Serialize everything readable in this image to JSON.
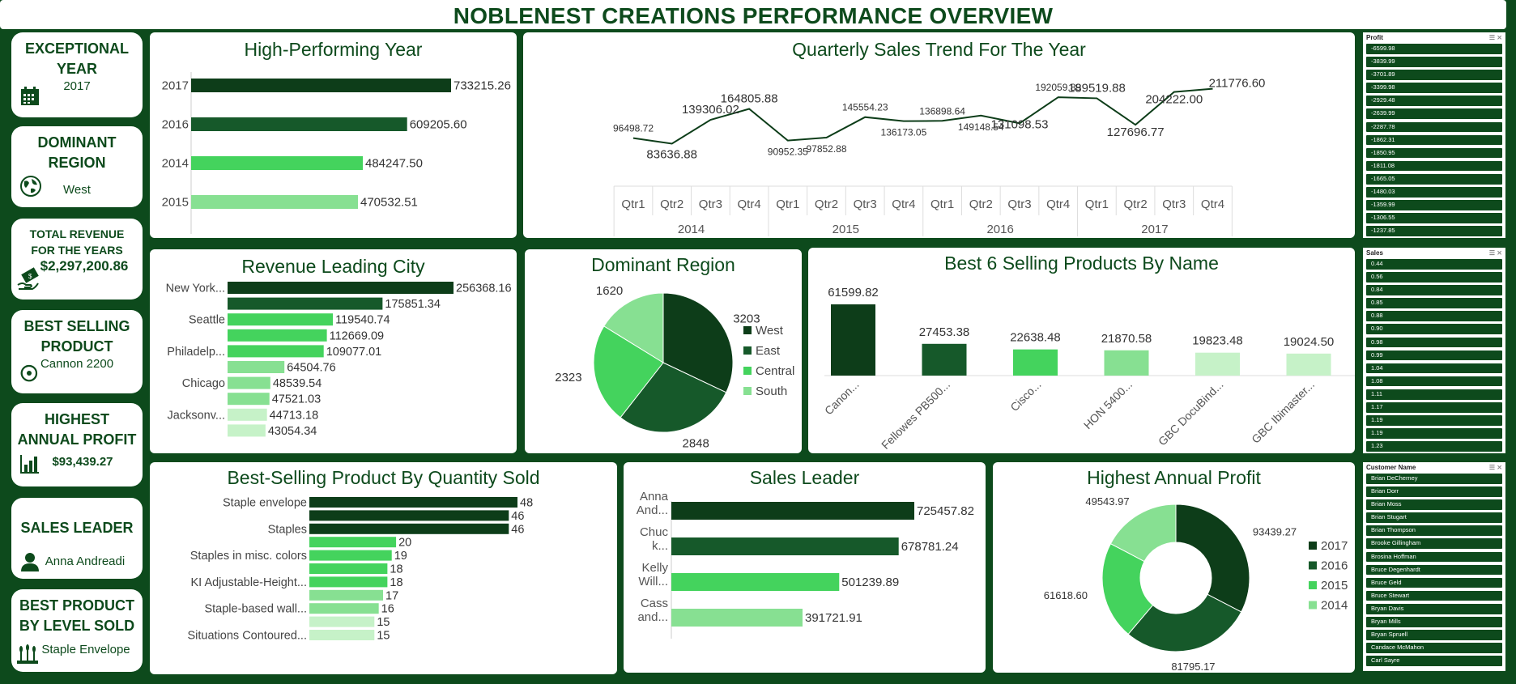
{
  "title": "NOBLENEST CREATIONS PERFORMANCE OVERVIEW",
  "colors": {
    "dark": "#0d3d19",
    "mid": "#16592a",
    "bright": "#44d35d",
    "light": "#87e092",
    "pale": "#c6f2c8",
    "bg": "#0d4a1c"
  },
  "kpis": {
    "year": {
      "label1": "EXCEPTIONAL",
      "label2": "YEAR",
      "value": "2017",
      "icon": "calendar-icon"
    },
    "region": {
      "label1": "DOMINANT",
      "label2": "REGION",
      "value": "West",
      "icon": "globe-icon"
    },
    "revenue": {
      "label1": "TOTAL REVENUE",
      "label2": "FOR THE   YEARS",
      "value": "$2,297,200.86",
      "icon": "money-icon"
    },
    "product": {
      "label1": "BEST SELLING",
      "label2": "PRODUCT",
      "value": "Cannon  2200",
      "icon": "recycle-icon"
    },
    "profit": {
      "label1": "HIGHEST",
      "label2": "ANNUAL PROFIT",
      "value": "$93,439.27",
      "icon": "bar-chart-icon"
    },
    "leader": {
      "label1": "SALES LEADER",
      "value": "Anna Andreadi",
      "icon": "person-icon"
    },
    "level": {
      "label1": "BEST PRODUCT",
      "label2": "BY LEVEL SOLD",
      "value": "Staple Envelope",
      "icon": "wheat-icon"
    }
  },
  "chart_data": [
    {
      "id": "year",
      "type": "bar",
      "orientation": "horizontal",
      "title": "High-Performing Year",
      "categories": [
        "2017",
        "2016",
        "2014",
        "2015"
      ],
      "values": [
        733215.26,
        609205.6,
        484247.5,
        470532.51
      ],
      "labels": [
        "733215.26",
        "609205.60",
        "484247.50",
        "470532.51"
      ],
      "colors": [
        "#0d3d19",
        "#16592a",
        "#44d35d",
        "#87e092"
      ]
    },
    {
      "id": "quarterly",
      "type": "line",
      "title": "Quarterly Sales Trend For The Year",
      "categories": [
        "Qtr1",
        "Qtr2",
        "Qtr3",
        "Qtr4",
        "Qtr1",
        "Qtr2",
        "Qtr3",
        "Qtr4",
        "Qtr1",
        "Qtr2",
        "Qtr3",
        "Qtr4",
        "Qtr1",
        "Qtr2",
        "Qtr3",
        "Qtr4"
      ],
      "groups": [
        "2014",
        "2015",
        "2016",
        "2017"
      ],
      "values": [
        96498.72,
        83636.88,
        139306.02,
        164805.88,
        90952.35,
        97852.88,
        145554.23,
        136173.05,
        136898.64,
        149148.54,
        131098.53,
        192059.89,
        189519.88,
        127696.77,
        204222.0,
        211776.6
      ],
      "labels": [
        "96498.72",
        "83636.88",
        "139306.02",
        "164805.88",
        "90952.35",
        "97852.88",
        "145554.23",
        "136173.05",
        "136898.64",
        "149148.54",
        "131098.53",
        "192059.89",
        "189519.88",
        "127696.77",
        "204222.00",
        "211776.60"
      ]
    },
    {
      "id": "city",
      "type": "bar",
      "orientation": "horizontal",
      "title": "Revenue Leading City",
      "categories": [
        "New York...",
        "",
        "Seattle",
        "",
        "Philadelp...",
        "",
        "Chicago",
        "",
        "Jacksonv...",
        ""
      ],
      "values": [
        256368.16,
        175851.34,
        119540.74,
        112669.09,
        109077.01,
        64504.76,
        48539.54,
        47521.03,
        44713.18,
        43054.34
      ],
      "labels": [
        "256368.16",
        "175851.34",
        "119540.74",
        "112669.09",
        "109077.01",
        "64504.76",
        "48539.54",
        "47521.03",
        "44713.18",
        "43054.34"
      ],
      "colors": [
        "#0d3d19",
        "#16592a",
        "#44d35d",
        "#44d35d",
        "#44d35d",
        "#87e092",
        "#87e092",
        "#87e092",
        "#c6f2c8",
        "#c6f2c8"
      ]
    },
    {
      "id": "region",
      "type": "pie",
      "title": "Dominant Region",
      "categories": [
        "West",
        "East",
        "Central",
        "South"
      ],
      "values": [
        3203,
        2848,
        2323,
        1620
      ],
      "labels": [
        "3203",
        "2848",
        "2323",
        "1620"
      ],
      "colors": [
        "#0d3d19",
        "#16592a",
        "#44d35d",
        "#87e092"
      ]
    },
    {
      "id": "products",
      "type": "bar",
      "orientation": "vertical",
      "title": "Best 6 Selling Products By Name",
      "categories": [
        "Canon...",
        "Fellowes PB500...",
        "Cisco...",
        "HON 5400...",
        "GBC DocuBind...",
        "GBC Ibimaster..."
      ],
      "values": [
        61599.82,
        27453.38,
        22638.48,
        21870.58,
        19823.48,
        19024.5
      ],
      "labels": [
        "61599.82",
        "27453.38",
        "22638.48",
        "21870.58",
        "19823.48",
        "19024.50"
      ],
      "colors": [
        "#0d3d19",
        "#16592a",
        "#44d35d",
        "#87e092",
        "#c6f2c8",
        "#c6f2c8"
      ]
    },
    {
      "id": "quantity",
      "type": "bar",
      "orientation": "horizontal",
      "title": "Best-Selling  Product By Quantity Sold",
      "categories": [
        "Staple envelope",
        "",
        "Staples",
        "",
        "Staples in misc. colors",
        "",
        "KI Adjustable-Height...",
        "",
        "Staple-based wall...",
        "",
        "Situations Contoured..."
      ],
      "values": [
        48,
        46,
        46,
        20,
        19,
        18,
        18,
        17,
        16,
        15,
        15
      ],
      "labels": [
        "48",
        "46",
        "46",
        "20",
        "19",
        "18",
        "18",
        "17",
        "16",
        "15",
        "15"
      ],
      "colors": [
        "#0d3d19",
        "#0d3d19",
        "#0d3d19",
        "#44d35d",
        "#44d35d",
        "#44d35d",
        "#44d35d",
        "#87e092",
        "#87e092",
        "#c6f2c8",
        "#c6f2c8"
      ]
    },
    {
      "id": "leader",
      "type": "bar",
      "orientation": "horizontal",
      "title": "Sales Leader",
      "categories": [
        [
          "Anna",
          "And..."
        ],
        [
          "Chuc",
          "k..."
        ],
        [
          "Kelly",
          "Will..."
        ],
        [
          "Cass",
          "and..."
        ]
      ],
      "values": [
        725457.82,
        678781.24,
        501239.89,
        391721.91
      ],
      "labels": [
        "725457.82",
        "678781.24",
        "501239.89",
        "391721.91"
      ],
      "colors": [
        "#0d3d19",
        "#16592a",
        "#44d35d",
        "#87e092"
      ]
    },
    {
      "id": "profit",
      "type": "pie",
      "donut": true,
      "title": "Highest Annual Profit",
      "categories": [
        "2017",
        "2016",
        "2015",
        "2014"
      ],
      "values": [
        93439.27,
        81795.17,
        61618.6,
        49543.97
      ],
      "labels": [
        "93439.27",
        "81795.17",
        "61618.60",
        "49543.97"
      ],
      "colors": [
        "#0d3d19",
        "#16592a",
        "#44d35d",
        "#87e092"
      ]
    }
  ],
  "slicers": [
    {
      "title": "Profit",
      "items": [
        "-6599.98",
        "-3839.99",
        "-3701.89",
        "-3399.98",
        "-2929.48",
        "-2639.99",
        "-2287.78",
        "-1862.31",
        "-1850.95",
        "-1811.08",
        "-1665.05",
        "-1480.03",
        "-1359.99",
        "-1306.55",
        "-1237.85"
      ]
    },
    {
      "title": "Sales",
      "items": [
        "0.44",
        "0.56",
        "0.84",
        "0.85",
        "0.88",
        "0.90",
        "0.98",
        "0.99",
        "1.04",
        "1.08",
        "1.11",
        "1.17",
        "1.19",
        "1.19",
        "1.23"
      ]
    },
    {
      "title": "Customer Name",
      "items": [
        "Brian DeCherney",
        "Brian Dorr",
        "Brian Moss",
        "Brian Stugart",
        "Brian Thompson",
        "Brooke Gillingham",
        "Brosina Hoffman",
        "Bruce Degenhardt",
        "Bruce Geld",
        "Bruce Stewart",
        "Bryan Davis",
        "Bryan Mills",
        "Bryan Spruell",
        "Candace McMahon",
        "Carl Sayre"
      ]
    }
  ]
}
